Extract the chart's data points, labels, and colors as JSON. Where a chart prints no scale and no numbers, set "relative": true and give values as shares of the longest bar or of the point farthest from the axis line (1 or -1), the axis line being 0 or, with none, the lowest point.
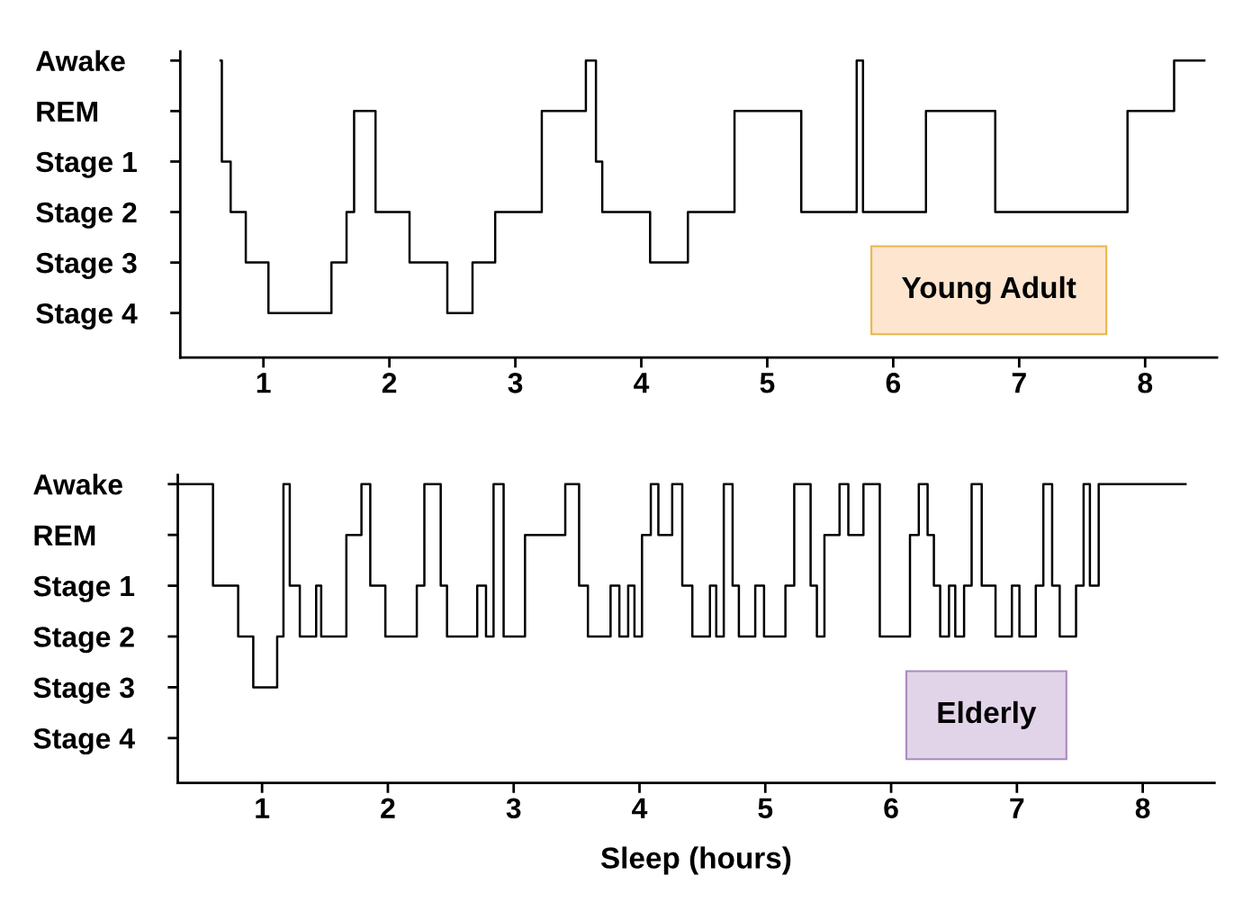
{
  "chart_data": [
    {
      "type": "step",
      "relative": true,
      "annotations": [
        "Young Adult"
      ],
      "y_categories": [
        "Awake",
        "REM",
        "Stage 1",
        "Stage 2",
        "Stage 3",
        "Stage 4"
      ],
      "series": [
        {
          "color": "#000000",
          "x": [
            0.66,
            0.67,
            0.74,
            0.86,
            1.04,
            1.54,
            1.66,
            1.72,
            1.89,
            2.16,
            2.46,
            2.66,
            2.84,
            3.21,
            3.56,
            3.64,
            3.69,
            4.07,
            4.37,
            4.74,
            5.27,
            5.71,
            5.76,
            6.26,
            6.81,
            7.86,
            8.23,
            8.47
          ],
          "values": [
            1,
            0.66,
            0.49,
            0.32,
            0.15,
            0.32,
            0.49,
            0.83,
            0.49,
            0.32,
            0.15,
            0.32,
            0.49,
            0.83,
            1,
            0.66,
            0.49,
            0.32,
            0.49,
            0.83,
            0.49,
            1,
            0.49,
            0.83,
            0.49,
            0.83,
            1,
            1
          ]
        }
      ],
      "xlim": [
        0.34,
        8.57
      ],
      "xticks": [
        1,
        2,
        3,
        4,
        5,
        6,
        7,
        8
      ],
      "grid": false,
      "legend": false,
      "marker": "none",
      "line_style": "solid"
    },
    {
      "type": "step",
      "relative": true,
      "xlabel": "Sleep (hours)",
      "annotations": [
        "Elderly"
      ],
      "y_categories": [
        "Awake",
        "REM",
        "Stage 1",
        "Stage 2",
        "Stage 3",
        "Stage 4"
      ],
      "series": [
        {
          "color": "#000000",
          "x": [
            0.33,
            0.61,
            0.81,
            0.93,
            1.12,
            1.17,
            1.22,
            1.3,
            1.43,
            1.47,
            1.67,
            1.79,
            1.86,
            1.98,
            2.23,
            2.29,
            2.42,
            2.47,
            2.71,
            2.78,
            2.84,
            2.92,
            3.09,
            3.41,
            3.52,
            3.59,
            3.77,
            3.84,
            3.91,
            3.96,
            4.02,
            4.09,
            4.15,
            4.26,
            4.34,
            4.42,
            4.56,
            4.61,
            4.67,
            4.74,
            4.79,
            4.92,
            4.99,
            5.16,
            5.23,
            5.36,
            5.41,
            5.47,
            5.59,
            5.66,
            5.78,
            5.91,
            6.15,
            6.22,
            6.29,
            6.34,
            6.39,
            6.46,
            6.51,
            6.58,
            6.64,
            6.72,
            6.83,
            6.96,
            7.02,
            7.15,
            7.21,
            7.28,
            7.34,
            7.47,
            7.53,
            7.58,
            7.65,
            8.34
          ],
          "values": [
            1,
            0.66,
            0.49,
            0.32,
            0.49,
            1,
            0.66,
            0.49,
            0.66,
            0.49,
            0.83,
            1,
            0.66,
            0.49,
            0.66,
            1,
            0.66,
            0.49,
            0.66,
            0.49,
            1,
            0.49,
            0.83,
            1,
            0.66,
            0.49,
            0.66,
            0.49,
            0.66,
            0.49,
            0.83,
            1,
            0.83,
            1,
            0.66,
            0.49,
            0.66,
            0.49,
            1,
            0.66,
            0.49,
            0.66,
            0.49,
            0.66,
            1,
            0.66,
            0.49,
            0.83,
            1,
            0.83,
            1,
            0.49,
            0.83,
            1,
            0.83,
            0.66,
            0.49,
            0.66,
            0.49,
            0.66,
            1,
            0.66,
            0.49,
            0.66,
            0.49,
            0.66,
            1,
            0.66,
            0.49,
            0.66,
            1,
            0.66,
            1,
            1
          ]
        }
      ],
      "xlim": [
        0.33,
        8.57
      ],
      "xticks": [
        1,
        2,
        3,
        4,
        5,
        6,
        7,
        8
      ],
      "grid": false,
      "legend": false,
      "marker": "none",
      "line_style": "solid"
    }
  ]
}
